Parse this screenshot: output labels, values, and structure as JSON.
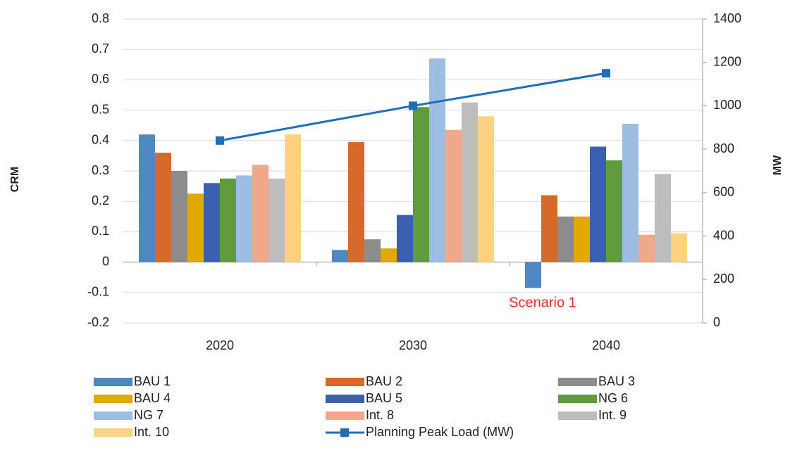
{
  "chart_data": {
    "type": "bar",
    "categories": [
      "2020",
      "2030",
      "2040"
    ],
    "ylabel": "CRM",
    "y2label": "MW",
    "ylim": [
      -0.2,
      0.8
    ],
    "yticks": [
      -0.2,
      -0.1,
      0,
      0.1,
      0.2,
      0.3,
      0.4,
      0.5,
      0.6,
      0.7,
      0.8
    ],
    "y2lim": [
      0,
      1400
    ],
    "y2ticks": [
      0,
      200,
      400,
      600,
      800,
      1000,
      1200,
      1400
    ],
    "grid": true,
    "annotation": "Scenario 1",
    "series": [
      {
        "name": "BAU 1",
        "color": "#4f87c0",
        "values": [
          0.42,
          0.04,
          -0.085
        ]
      },
      {
        "name": "BAU 2",
        "color": "#d46b2a",
        "values": [
          0.36,
          0.395,
          0.22
        ]
      },
      {
        "name": "BAU 3",
        "color": "#8c8c8c",
        "values": [
          0.3,
          0.075,
          0.15
        ]
      },
      {
        "name": "BAU 4",
        "color": "#e0a800",
        "values": [
          0.225,
          0.045,
          0.15
        ]
      },
      {
        "name": "BAU 5",
        "color": "#3a5fae",
        "values": [
          0.26,
          0.155,
          0.38
        ]
      },
      {
        "name": "NG 6",
        "color": "#5f9a3c",
        "values": [
          0.275,
          0.51,
          0.335
        ]
      },
      {
        "name": "NG 7",
        "color": "#9dbde3",
        "values": [
          0.285,
          0.67,
          0.455
        ]
      },
      {
        "name": "Int. 8",
        "color": "#efa88a",
        "values": [
          0.32,
          0.435,
          0.09
        ]
      },
      {
        "name": "Int. 9",
        "color": "#bdbdbd",
        "values": [
          0.275,
          0.525,
          0.29
        ]
      },
      {
        "name": "Int. 10",
        "color": "#fdd382",
        "values": [
          0.42,
          0.48,
          0.095
        ]
      },
      {
        "name": "Planning Peak Load (MW)",
        "color": "#1c6fb8",
        "type": "line",
        "axis": "y2",
        "values": [
          840,
          1000,
          1150
        ]
      }
    ]
  }
}
